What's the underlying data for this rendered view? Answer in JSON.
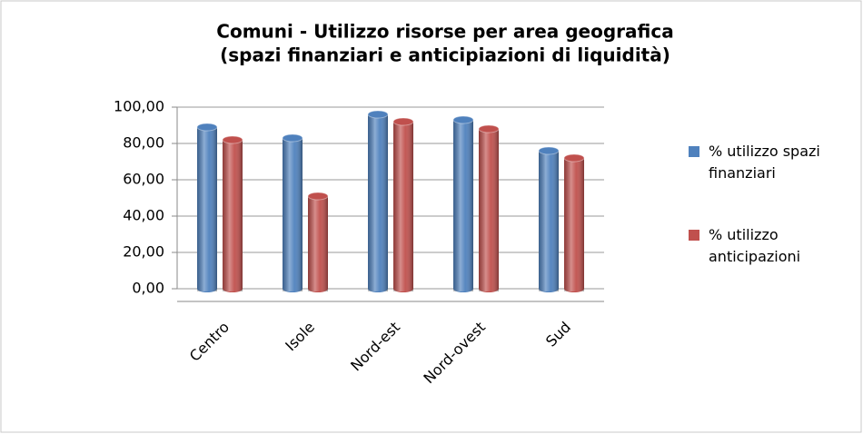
{
  "chart_data": {
    "type": "bar",
    "title": [
      "Comuni - Utilizzo risorse per area geografica",
      "(spazi finanziari e anticipiazioni di liquidità)"
    ],
    "categories": [
      "Centro",
      "Isole",
      "Nord-est",
      "Nord-ovest",
      "Sud"
    ],
    "series": [
      {
        "name": "% utilizzo spazi finanziari",
        "color": "#4f81bd",
        "values": [
          89,
          83,
          96,
          93,
          76
        ]
      },
      {
        "name": "% utilizzo anticipazioni",
        "color": "#c0504d",
        "values": [
          82,
          51,
          92,
          88,
          72
        ]
      }
    ],
    "ylim": [
      0,
      100
    ],
    "yticks": [
      {
        "value": 0,
        "label": "0,00"
      },
      {
        "value": 20,
        "label": "20,00"
      },
      {
        "value": 40,
        "label": "40,00"
      },
      {
        "value": 60,
        "label": "60,00"
      },
      {
        "value": 80,
        "label": "80,00"
      },
      {
        "value": 100,
        "label": "100,00"
      }
    ],
    "grid": true,
    "legend": "right"
  }
}
